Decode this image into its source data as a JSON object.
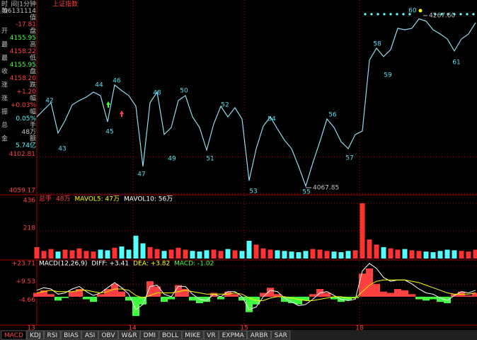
{
  "title": "上证指数",
  "sidebar": [
    {
      "label": "时",
      "text": "间|1分钟",
      "color": "#c0c0c0"
    },
    {
      "label": "数",
      "text": "06131114",
      "color": "#c0c0c0"
    },
    {
      "text": "值",
      "color": "#c0c0c0"
    },
    {
      "text": "-17.81",
      "color": "#ff4040"
    },
    {
      "label": "开",
      "text": "盘",
      "color": "#c0c0c0"
    },
    {
      "text": "4155.95",
      "color": "#40ff40"
    },
    {
      "label": "最",
      "text": "高",
      "color": "#c0c0c0"
    },
    {
      "text": "4158.22",
      "color": "#ff4040"
    },
    {
      "label": "最",
      "text": "低",
      "color": "#c0c0c0"
    },
    {
      "text": "4155.95",
      "color": "#40ff40"
    },
    {
      "label": "收",
      "text": "盘",
      "color": "#c0c0c0"
    },
    {
      "text": "4158.20",
      "color": "#ff4040"
    },
    {
      "label": "涨",
      "text": "跌",
      "color": "#c0c0c0"
    },
    {
      "text": "+1.20",
      "color": "#ff4040"
    },
    {
      "label": "涨",
      "text": "幅",
      "color": "#c0c0c0"
    },
    {
      "text": "+0.03%",
      "color": "#ff4040"
    },
    {
      "label": "振",
      "text": "幅",
      "color": "#c0c0c0"
    },
    {
      "text": "0.05%",
      "color": "#54ffff"
    },
    {
      "label": "总",
      "text": "手",
      "color": "#c0c0c0"
    },
    {
      "text": "48万",
      "color": "#c0c0c0"
    },
    {
      "label": "金",
      "text": "额",
      "color": "#c0c0c0"
    },
    {
      "text": "5.74亿",
      "color": "#54ffff"
    }
  ],
  "chart_data": [
    {
      "type": "line",
      "color": "#8fdcea",
      "up_color": "#ff4040",
      "values": [
        4150.5,
        4159.0,
        4167.4,
        4131.1,
        4146.3,
        4164.9,
        4170.0,
        4174.2,
        4180.1,
        4175.9,
        4144.6,
        4188.6,
        4181.8,
        4175.9,
        4163.2,
        4091.3,
        4167.4,
        4180.1,
        4129.4,
        4137.8,
        4170.0,
        4175.9,
        4150.5,
        4137.8,
        4110.8,
        4142.1,
        4163.2,
        4150.5,
        4161.5,
        4148.0,
        4074.4,
        4112.5,
        4139.5,
        4150.5,
        4136.1,
        4122.6,
        4112.5,
        4091.3,
        4067.9,
        4095.6,
        4120.9,
        4148.0,
        4137.8,
        4120.9,
        4112.5,
        4129.4,
        4133.6,
        4218.2,
        4232.5,
        4222.4,
        4230.8,
        4256.2,
        4254.5,
        4256.2,
        4267.6,
        4264.7,
        4254.5,
        4249.4,
        4243.5,
        4229.1,
        4243.5,
        4249.4,
        4263.0
      ],
      "ylim": [
        4059.17,
        4290
      ],
      "yticks": [
        4059.17,
        4102.81
      ],
      "annotations": [
        "42",
        "43",
        "44",
        "45",
        "46",
        "47",
        "48",
        "49",
        "50",
        "51",
        "52",
        "53",
        "54",
        "55",
        "56",
        "57",
        "58",
        "59",
        "60",
        "61",
        "4267.60",
        "4067.85"
      ],
      "x_labels": [
        "13",
        "14",
        "15",
        "18"
      ]
    },
    {
      "type": "bar",
      "up_color": "#ff3232",
      "down_color": "#54ffff",
      "legend": [
        {
          "text": "总手",
          "color": "#ff4040"
        },
        {
          "text": "48万",
          "color": "#ff4040"
        },
        {
          "text": "MAVOL5: 47万",
          "color": "#ffff00"
        },
        {
          "text": "MAVOL10: 56万",
          "color": "#ffffff"
        }
      ],
      "values": [
        90,
        60,
        75,
        55,
        70,
        65,
        80,
        60,
        55,
        70,
        65,
        85,
        95,
        70,
        180,
        120,
        90,
        75,
        60,
        70,
        85,
        70,
        60,
        55,
        65,
        70,
        60,
        75,
        65,
        60,
        140,
        110,
        80,
        70,
        65,
        60,
        55,
        50,
        60,
        75,
        70,
        60,
        55,
        50,
        60,
        65,
        436,
        150,
        110,
        90,
        80,
        70,
        75,
        65,
        60,
        55,
        50,
        60,
        70,
        65,
        60,
        55,
        70
      ],
      "ylim": [
        0,
        436
      ],
      "yticks": [
        218,
        436
      ]
    },
    {
      "type": "macd",
      "pos_color": "#ff4040",
      "neg_color": "#40ff40",
      "legend": [
        {
          "text": "MACD(12,26,9)",
          "color": "#ffffff"
        },
        {
          "text": "DIFF: +3.41",
          "color": "#ffffff"
        },
        {
          "text": "DEA: +3.82",
          "color": "#ffff00"
        },
        {
          "text": "MACD: -1.02",
          "color": "#40ff40"
        }
      ],
      "values": [
        3,
        5,
        2,
        -3,
        -1,
        4,
        6,
        -2,
        -4,
        2,
        6,
        10,
        4,
        -3,
        -15,
        -6,
        12,
        8,
        -4,
        -2,
        9,
        6,
        -3,
        -5,
        -4,
        3,
        -2,
        4,
        2,
        -3,
        -12,
        -6,
        3,
        7,
        2,
        -4,
        -5,
        -6,
        -3,
        2,
        6,
        3,
        -2,
        -4,
        -3,
        -1,
        18,
        22,
        10,
        4,
        3,
        6,
        5,
        2,
        -2,
        -3,
        -2,
        -4,
        -5,
        2,
        4,
        1,
        3
      ],
      "series": [
        {
          "color": "#ffffff",
          "values": [
            5,
            7,
            6,
            2,
            3,
            6,
            8,
            4,
            1,
            3,
            7,
            11,
            7,
            2,
            -10,
            -6,
            8,
            9,
            2,
            0,
            8,
            8,
            2,
            -2,
            -3,
            2,
            0,
            4,
            4,
            0,
            -10,
            -8,
            0,
            5,
            4,
            -1,
            -4,
            -7,
            -6,
            -2,
            3,
            4,
            1,
            -2,
            -3,
            -2,
            20,
            26,
            22,
            15,
            12,
            13,
            13,
            10,
            6,
            3,
            2,
            -1,
            -3,
            1,
            4,
            3,
            5
          ]
        },
        {
          "color": "#ffff00",
          "values": [
            3,
            4,
            5,
            4,
            4,
            4,
            5,
            5,
            4,
            3,
            4,
            6,
            6,
            5,
            1,
            -1,
            1,
            3,
            3,
            3,
            4,
            5,
            4,
            3,
            2,
            2,
            2,
            2,
            3,
            2,
            -1,
            -3,
            -3,
            -1,
            0,
            0,
            -1,
            -2,
            -3,
            -3,
            -2,
            -1,
            0,
            0,
            -1,
            -1,
            4,
            9,
            12,
            13,
            13,
            13,
            13,
            12,
            11,
            9,
            7,
            5,
            3,
            2,
            2,
            2,
            3
          ]
        }
      ],
      "ylim": [
        -22.1,
        28.07
      ],
      "yticks": [
        {
          "value": 23.71,
          "label": "+23.71"
        },
        {
          "value": 9.53,
          "label": "+9.53"
        },
        -4.66
      ]
    }
  ],
  "tabs": [
    "MACD",
    "KDJ",
    "RSI",
    "BIAS",
    "ASI",
    "OBV",
    "W&R",
    "DMI",
    "BOLL",
    "MIKE",
    "VR",
    "EXPMA",
    "ARBR",
    "SAR"
  ]
}
